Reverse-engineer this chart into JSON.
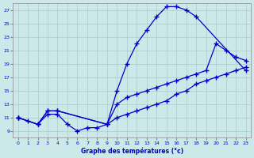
{
  "xlabel": "Graphe des températures (°c)",
  "bg_color": "#cce8e8",
  "line_color": "#0000cc",
  "xlim": [
    -0.5,
    23.5
  ],
  "ylim": [
    8,
    28
  ],
  "yticks": [
    9,
    11,
    13,
    15,
    17,
    19,
    21,
    23,
    25,
    27
  ],
  "xticks": [
    0,
    1,
    2,
    3,
    4,
    5,
    6,
    7,
    8,
    9,
    10,
    11,
    12,
    13,
    14,
    15,
    16,
    17,
    18,
    19,
    20,
    21,
    22,
    23
  ],
  "line1_x": [
    0,
    2,
    3,
    4,
    9,
    10,
    11,
    12,
    13,
    14,
    15,
    16,
    17,
    18,
    23
  ],
  "line1_y": [
    11,
    10,
    12,
    12,
    10,
    15,
    19,
    22,
    24,
    26,
    27.5,
    27.5,
    27,
    26,
    18
  ],
  "line2_x": [
    0,
    2,
    3,
    4,
    9,
    10,
    11,
    12,
    13,
    14,
    15,
    16,
    17,
    18,
    19,
    20,
    21,
    22,
    23
  ],
  "line2_y": [
    11,
    10,
    12,
    12,
    10,
    13,
    14,
    14.5,
    15,
    15.5,
    16,
    16.5,
    17,
    17.5,
    18,
    22,
    21,
    20,
    19.5
  ],
  "line3_x": [
    0,
    1,
    2,
    3,
    4,
    5,
    6,
    7,
    8,
    9,
    10,
    11,
    12,
    13,
    14,
    15,
    16,
    17,
    18,
    19,
    20,
    21,
    22,
    23
  ],
  "line3_y": [
    11,
    10.5,
    10,
    11.5,
    11.5,
    10,
    9,
    9.5,
    9.5,
    10,
    11,
    11.5,
    12,
    12.5,
    13,
    13.5,
    14.5,
    15,
    16,
    16.5,
    17,
    17.5,
    18,
    18.5
  ]
}
